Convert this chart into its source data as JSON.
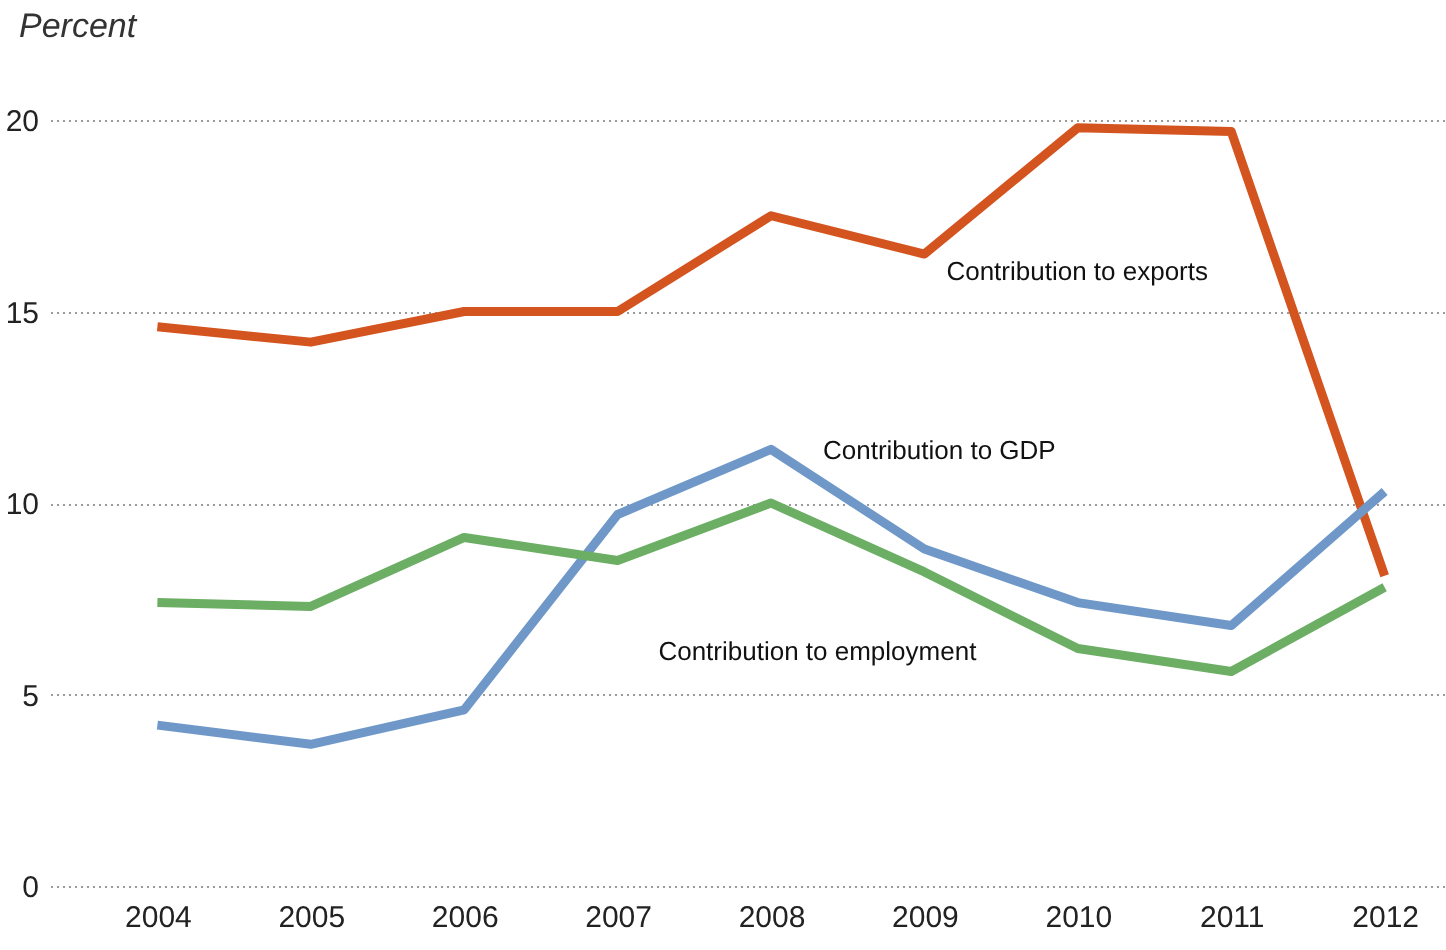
{
  "chart_data": {
    "type": "line",
    "ylabel": "Percent",
    "x": [
      2004,
      2005,
      2006,
      2007,
      2008,
      2009,
      2010,
      2011,
      2012
    ],
    "xlim": [
      2003.3,
      2012.4
    ],
    "xticks": [
      2004,
      2005,
      2006,
      2007,
      2008,
      2009,
      2010,
      2011,
      2012
    ],
    "ylim": [
      0,
      20
    ],
    "yticks": [
      0,
      5,
      10,
      15,
      20
    ],
    "grid": "y",
    "line_style": "solid",
    "marker": "none",
    "series": [
      {
        "name": "Contribution to exports",
        "color": "#d4541f",
        "values": [
          14.6,
          14.2,
          15.0,
          15.0,
          17.5,
          16.5,
          19.8,
          19.7,
          8.1
        ]
      },
      {
        "name": "Contribution to GDP",
        "color": "#6f98c9",
        "values": [
          4.2,
          3.7,
          4.6,
          9.7,
          11.4,
          8.8,
          7.4,
          6.8,
          10.3
        ]
      },
      {
        "name": "Contribution to employment",
        "color": "#6bae64",
        "values": [
          7.4,
          7.3,
          9.1,
          8.5,
          10.0,
          8.2,
          6.2,
          5.6,
          7.8
        ]
      }
    ]
  }
}
